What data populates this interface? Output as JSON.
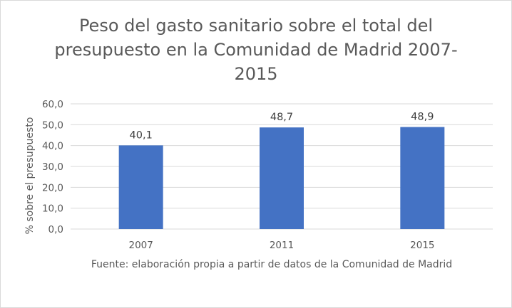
{
  "chart_data": {
    "type": "bar",
    "title": "Peso del gasto sanitario sobre el total del presupuesto en la Comunidad de Madrid 2007-2015",
    "categories": [
      "2007",
      "2011",
      "2015"
    ],
    "values": [
      40.1,
      48.7,
      48.9
    ],
    "data_labels": [
      "40,1",
      "48,7",
      "48,9"
    ],
    "ylabel": "% sobre el presupuesto",
    "xlabel": "",
    "ylim": [
      0,
      60
    ],
    "yticks": [
      "0,0",
      "10,0",
      "20,0",
      "30,0",
      "40,0",
      "50,0",
      "60,0"
    ],
    "grid": true,
    "legend": "none",
    "source": "Fuente: elaboración propia a partir de datos de la Comunidad de Madrid",
    "bar_color": "#4472c4",
    "grid_color": "#d9d9d9"
  }
}
